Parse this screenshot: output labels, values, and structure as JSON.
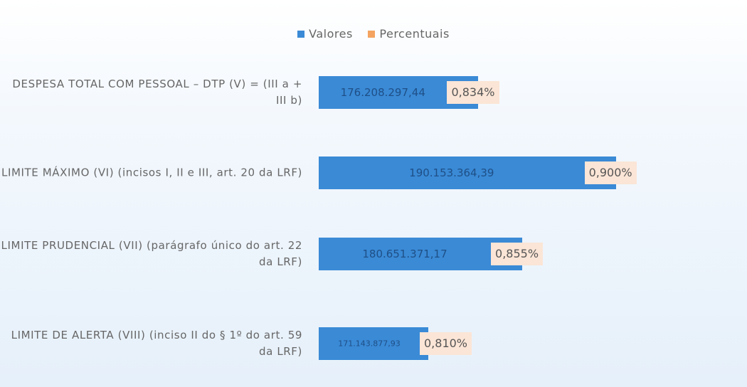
{
  "chart_data": {
    "type": "bar",
    "orientation": "horizontal",
    "categories": [
      "DESPESA TOTAL COM PESSOAL – DTP (V) = (III a + III b)",
      "LIMITE MÁXIMO (VI) (incisos I, II e III, art. 20 da LRF)",
      "LIMITE PRUDENCIAL (VII) (parágrafo único do art. 22 da LRF)",
      "LIMITE DE ALERTA (VIII) (inciso II do § 1º do art. 59 da LRF)"
    ],
    "series": [
      {
        "name": "Valores",
        "color": "#3a8ad6",
        "values": [
          176208297.44,
          190153364.39,
          180651371.17,
          171143877.93
        ],
        "value_labels": [
          "176.208.297,44",
          "190.153.364,39",
          "180.651.371,17",
          "171.143.877,93"
        ]
      },
      {
        "name": "Percentuais",
        "color": "#f4a460",
        "values": [
          0.834,
          0.9,
          0.855,
          0.81
        ],
        "value_labels": [
          "0,834%",
          "0,900%",
          "0,855%",
          "0,810%"
        ]
      }
    ],
    "xlim": [
      160000000,
      200000000
    ]
  }
}
